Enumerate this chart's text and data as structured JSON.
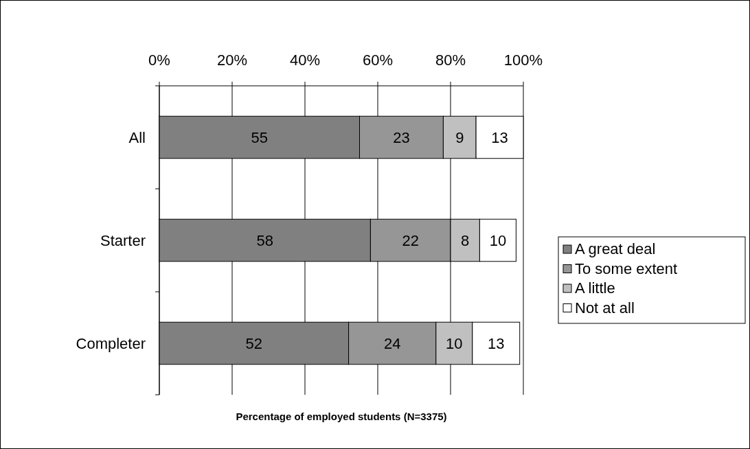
{
  "chart_data": {
    "type": "bar",
    "orientation": "horizontal",
    "stacked": true,
    "xlabel": "Percentage of employed students (N=3375)",
    "categories": [
      "All",
      "Starter",
      "Completer"
    ],
    "series": [
      {
        "name": "A great deal",
        "color": "#808080",
        "values": [
          55,
          58,
          52
        ]
      },
      {
        "name": "To some extent",
        "color": "#969696",
        "values": [
          23,
          22,
          24
        ]
      },
      {
        "name": "A little",
        "color": "#c0c0c0",
        "values": [
          9,
          8,
          10
        ]
      },
      {
        "name": "Not at all",
        "color": "#ffffff",
        "values": [
          13,
          10,
          13
        ]
      }
    ],
    "xlim": [
      0,
      100
    ],
    "xticks": [
      {
        "value": 0,
        "label": "0%"
      },
      {
        "value": 20,
        "label": "20%"
      },
      {
        "value": 40,
        "label": "40%"
      },
      {
        "value": 60,
        "label": "60%"
      },
      {
        "value": 80,
        "label": "80%"
      },
      {
        "value": 100,
        "label": "100%"
      }
    ],
    "grid": "x",
    "legend": "right",
    "data_labels": true
  }
}
